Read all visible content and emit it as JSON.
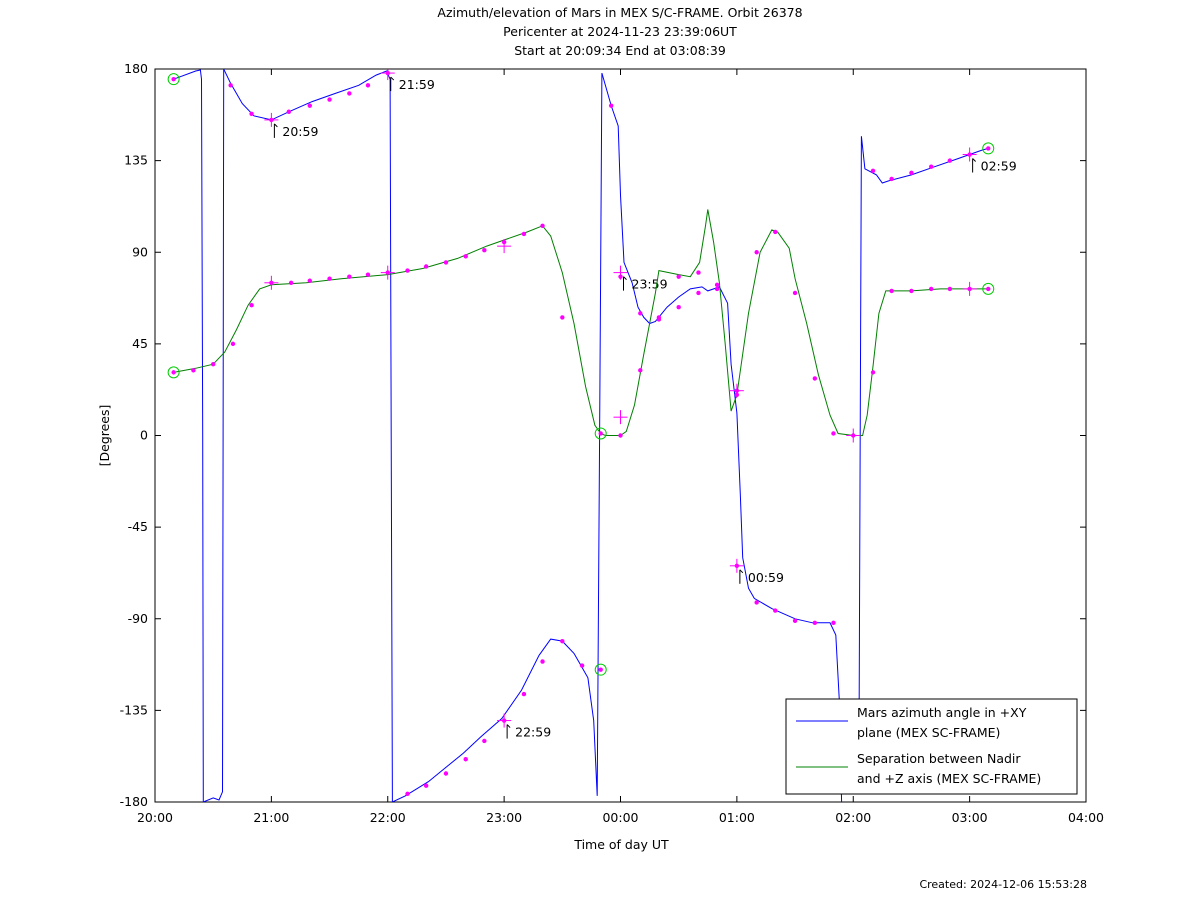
{
  "chart_data": {
    "type": "line",
    "title_lines": [
      "Azimuth/elevation of Mars in MEX S/C-FRAME.  Orbit 26378",
      "Pericenter at 2024-11-23 23:39:06UT",
      "Start at 20:09:34 End at 03:08:39"
    ],
    "xlabel": "Time of day UT",
    "ylabel": "[Degrees]",
    "xlim": [
      20,
      28
    ],
    "ylim": [
      -180,
      180
    ],
    "x_ticks": [
      20,
      21,
      22,
      23,
      24,
      25,
      26,
      27,
      28
    ],
    "x_tick_labels": [
      "20:00",
      "21:00",
      "22:00",
      "23:00",
      "00:00",
      "01:00",
      "02:00",
      "03:00",
      "04:00"
    ],
    "y_ticks": [
      180,
      135,
      90,
      45,
      0,
      -45,
      -90,
      -135,
      -180
    ],
    "y_tick_labels": [
      "180",
      "135",
      "90",
      "45",
      "0",
      "-45",
      "-90",
      "-135",
      "-180"
    ],
    "legend_position": "bottom-right",
    "series": [
      {
        "name": "Mars azimuth angle in +XY plane (MEX SC-FRAME)",
        "legend_lines": [
          "Mars azimuth angle in +XY",
          "plane (MEX SC-FRAME)"
        ],
        "color": "#0000ff",
        "segments": [
          [
            [
              20.16,
              175
            ],
            [
              20.35,
              179
            ],
            [
              20.39,
              179.5
            ],
            [
              20.4,
              175
            ],
            [
              20.41,
              0
            ],
            [
              20.415,
              -180
            ]
          ],
          [
            [
              20.415,
              -180
            ],
            [
              20.5,
              -178
            ],
            [
              20.55,
              -179
            ],
            [
              20.58,
              -175
            ],
            [
              20.585,
              0
            ],
            [
              20.59,
              180
            ]
          ],
          [
            [
              20.59,
              180
            ],
            [
              20.65,
              173
            ],
            [
              20.75,
              163
            ],
            [
              20.85,
              157
            ],
            [
              21.0,
              155
            ],
            [
              21.15,
              159
            ],
            [
              21.35,
              164
            ],
            [
              21.55,
              168
            ],
            [
              21.75,
              172
            ],
            [
              21.9,
              177
            ],
            [
              21.99,
              179
            ],
            [
              22.02,
              175
            ],
            [
              22.03,
              0
            ],
            [
              22.04,
              -180
            ]
          ],
          [
            [
              22.04,
              -180
            ],
            [
              22.15,
              -177
            ],
            [
              22.35,
              -170
            ],
            [
              22.5,
              -163
            ],
            [
              22.65,
              -156
            ],
            [
              22.8,
              -148
            ],
            [
              22.98,
              -139
            ],
            [
              23.15,
              -125
            ],
            [
              23.3,
              -108
            ],
            [
              23.4,
              -100
            ],
            [
              23.5,
              -101
            ],
            [
              23.6,
              -107
            ],
            [
              23.65,
              -112
            ],
            [
              23.72,
              -119
            ],
            [
              23.77,
              -140
            ],
            [
              23.8,
              -177
            ],
            [
              23.82,
              0
            ],
            [
              23.84,
              178
            ]
          ],
          [
            [
              23.84,
              178
            ],
            [
              23.92,
              162
            ],
            [
              23.98,
              152
            ],
            [
              24.0,
              118
            ],
            [
              24.03,
              85
            ],
            [
              24.1,
              75
            ],
            [
              24.15,
              63
            ],
            [
              24.2,
              58
            ],
            [
              24.25,
              55
            ],
            [
              24.3,
              56
            ],
            [
              24.4,
              63
            ],
            [
              24.5,
              68
            ],
            [
              24.6,
              72
            ],
            [
              24.7,
              73
            ],
            [
              24.75,
              71
            ],
            [
              24.85,
              73
            ],
            [
              24.92,
              65
            ],
            [
              24.95,
              35
            ],
            [
              25.0,
              11
            ],
            [
              25.03,
              -30
            ],
            [
              25.05,
              -60
            ],
            [
              25.1,
              -75
            ],
            [
              25.15,
              -80
            ],
            [
              25.3,
              -85
            ],
            [
              25.5,
              -90
            ],
            [
              25.65,
              -92
            ],
            [
              25.8,
              -92
            ],
            [
              25.85,
              -98
            ],
            [
              25.88,
              -130
            ],
            [
              25.9,
              -180
            ]
          ],
          [
            [
              26.05,
              -140
            ],
            [
              26.06,
              0
            ],
            [
              26.07,
              147
            ],
            [
              26.1,
              131
            ],
            [
              26.2,
              128
            ],
            [
              26.25,
              124
            ],
            [
              26.3,
              125
            ],
            [
              26.5,
              128
            ],
            [
              26.7,
              132
            ],
            [
              26.9,
              136
            ],
            [
              27.0,
              138
            ],
            [
              27.1,
              140
            ],
            [
              27.16,
              141
            ]
          ]
        ],
        "dots": [
          [
            20.16,
            175
          ],
          [
            20.65,
            172
          ],
          [
            20.83,
            158
          ],
          [
            21.0,
            155
          ],
          [
            21.15,
            159
          ],
          [
            21.33,
            162
          ],
          [
            21.5,
            165
          ],
          [
            21.67,
            168
          ],
          [
            21.83,
            172
          ],
          [
            22.0,
            178
          ],
          [
            22.17,
            -176
          ],
          [
            22.33,
            -172
          ],
          [
            22.5,
            -166
          ],
          [
            22.67,
            -159
          ],
          [
            22.83,
            -150
          ],
          [
            23.0,
            -140
          ],
          [
            23.17,
            -127
          ],
          [
            23.33,
            -111
          ],
          [
            23.5,
            -101
          ],
          [
            23.67,
            -113
          ],
          [
            23.83,
            -115
          ],
          [
            23.92,
            162
          ],
          [
            24.0,
            78
          ],
          [
            24.17,
            60
          ],
          [
            24.33,
            57
          ],
          [
            24.5,
            63
          ],
          [
            24.67,
            70
          ],
          [
            24.83,
            72
          ],
          [
            25.0,
            22
          ],
          [
            25.0,
            -64
          ],
          [
            25.17,
            -82
          ],
          [
            25.33,
            -86
          ],
          [
            25.5,
            -91
          ],
          [
            25.67,
            -92
          ],
          [
            25.83,
            -92
          ],
          [
            26.17,
            130
          ],
          [
            26.33,
            126
          ],
          [
            26.5,
            129
          ],
          [
            26.67,
            132
          ],
          [
            26.83,
            135
          ],
          [
            27.0,
            138
          ],
          [
            27.16,
            141
          ]
        ],
        "crosses": [
          [
            21.0,
            155
          ],
          [
            22.0,
            178
          ],
          [
            23.0,
            -140
          ],
          [
            24.0,
            80
          ],
          [
            25.0,
            -64
          ],
          [
            27.0,
            138
          ]
        ],
        "start_end_circles": [
          [
            20.16,
            175
          ],
          [
            23.83,
            -115
          ],
          [
            27.16,
            141
          ]
        ],
        "time_labels": [
          {
            "label": "20:59",
            "x": 21.0,
            "y": 155
          },
          {
            "label": "21:59",
            "x": 22.0,
            "y": 178
          },
          {
            "label": "22:59",
            "x": 23.0,
            "y": -140
          },
          {
            "label": "23:59",
            "x": 24.0,
            "y": 80
          },
          {
            "label": "00:59",
            "x": 25.0,
            "y": -64
          },
          {
            "label": "02:59",
            "x": 27.0,
            "y": 138
          }
        ]
      },
      {
        "name": "Separation between Nadir and +Z axis (MEX SC-FRAME)",
        "legend_lines": [
          "Separation between Nadir",
          "and +Z axis (MEX SC-FRAME)"
        ],
        "color": "#008000",
        "segments": [
          [
            [
              20.16,
              31
            ],
            [
              20.35,
              33
            ],
            [
              20.5,
              35
            ],
            [
              20.6,
              41
            ],
            [
              20.7,
              52
            ],
            [
              20.8,
              64
            ],
            [
              20.9,
              72
            ],
            [
              21.0,
              74
            ],
            [
              21.3,
              75
            ],
            [
              21.6,
              77
            ],
            [
              22.0,
              79
            ],
            [
              22.3,
              82
            ],
            [
              22.6,
              87
            ],
            [
              22.85,
              93
            ],
            [
              23.0,
              96
            ],
            [
              23.2,
              100
            ],
            [
              23.33,
              103
            ],
            [
              23.4,
              98
            ],
            [
              23.5,
              80
            ],
            [
              23.6,
              55
            ],
            [
              23.7,
              24
            ],
            [
              23.78,
              5
            ],
            [
              23.83,
              1
            ],
            [
              23.87,
              0
            ],
            [
              24.0,
              0
            ],
            [
              24.05,
              2
            ],
            [
              24.12,
              15
            ],
            [
              24.2,
              40
            ],
            [
              24.3,
              70
            ],
            [
              24.33,
              81
            ],
            [
              24.5,
              79
            ],
            [
              24.6,
              78
            ],
            [
              24.68,
              85
            ],
            [
              24.73,
              103
            ],
            [
              24.75,
              111
            ],
            [
              24.8,
              95
            ],
            [
              24.85,
              75
            ],
            [
              24.9,
              45
            ],
            [
              24.95,
              12
            ],
            [
              25.0,
              20
            ],
            [
              25.1,
              60
            ],
            [
              25.2,
              90
            ],
            [
              25.3,
              101
            ],
            [
              25.35,
              100
            ],
            [
              25.45,
              92
            ],
            [
              25.5,
              77
            ],
            [
              25.6,
              55
            ],
            [
              25.7,
              30
            ],
            [
              25.8,
              10
            ],
            [
              25.87,
              1
            ],
            [
              26.0,
              0
            ],
            [
              26.08,
              0
            ],
            [
              26.12,
              10
            ],
            [
              26.17,
              34
            ],
            [
              26.22,
              60
            ],
            [
              26.28,
              71
            ],
            [
              26.35,
              71
            ],
            [
              26.5,
              71
            ],
            [
              26.75,
              72
            ],
            [
              27.0,
              72
            ],
            [
              27.16,
              72
            ]
          ]
        ],
        "dots": [
          [
            20.16,
            31
          ],
          [
            20.33,
            32
          ],
          [
            20.5,
            35
          ],
          [
            20.67,
            45
          ],
          [
            20.83,
            64
          ],
          [
            21.0,
            75
          ],
          [
            21.17,
            75
          ],
          [
            21.33,
            76
          ],
          [
            21.5,
            77
          ],
          [
            21.67,
            78
          ],
          [
            21.83,
            79
          ],
          [
            22.0,
            80
          ],
          [
            22.17,
            81
          ],
          [
            22.33,
            83
          ],
          [
            22.5,
            85
          ],
          [
            22.67,
            88
          ],
          [
            22.83,
            91
          ],
          [
            23.0,
            95
          ],
          [
            23.17,
            99
          ],
          [
            23.33,
            103
          ],
          [
            23.5,
            58
          ],
          [
            23.83,
            1
          ],
          [
            24.0,
            0
          ],
          [
            24.17,
            32
          ],
          [
            24.33,
            58
          ],
          [
            24.5,
            78
          ],
          [
            24.67,
            80
          ],
          [
            24.83,
            74
          ],
          [
            25.0,
            20
          ],
          [
            25.17,
            90
          ],
          [
            25.33,
            100
          ],
          [
            25.5,
            70
          ],
          [
            25.67,
            28
          ],
          [
            25.83,
            1
          ],
          [
            26.0,
            0
          ],
          [
            26.17,
            31
          ],
          [
            26.33,
            71
          ],
          [
            26.5,
            71
          ],
          [
            26.67,
            72
          ],
          [
            26.83,
            72
          ],
          [
            27.0,
            72
          ],
          [
            27.16,
            72
          ]
        ],
        "crosses": [
          [
            21.0,
            75
          ],
          [
            22.0,
            80
          ],
          [
            23.0,
            93
          ],
          [
            24.0,
            9
          ],
          [
            25.0,
            22
          ],
          [
            26.0,
            0
          ],
          [
            27.0,
            72
          ]
        ],
        "start_end_circles": [
          [
            20.16,
            31
          ],
          [
            23.83,
            1
          ],
          [
            27.16,
            72
          ]
        ]
      }
    ]
  },
  "footer": "Created: 2024-12-06 15:53:28"
}
